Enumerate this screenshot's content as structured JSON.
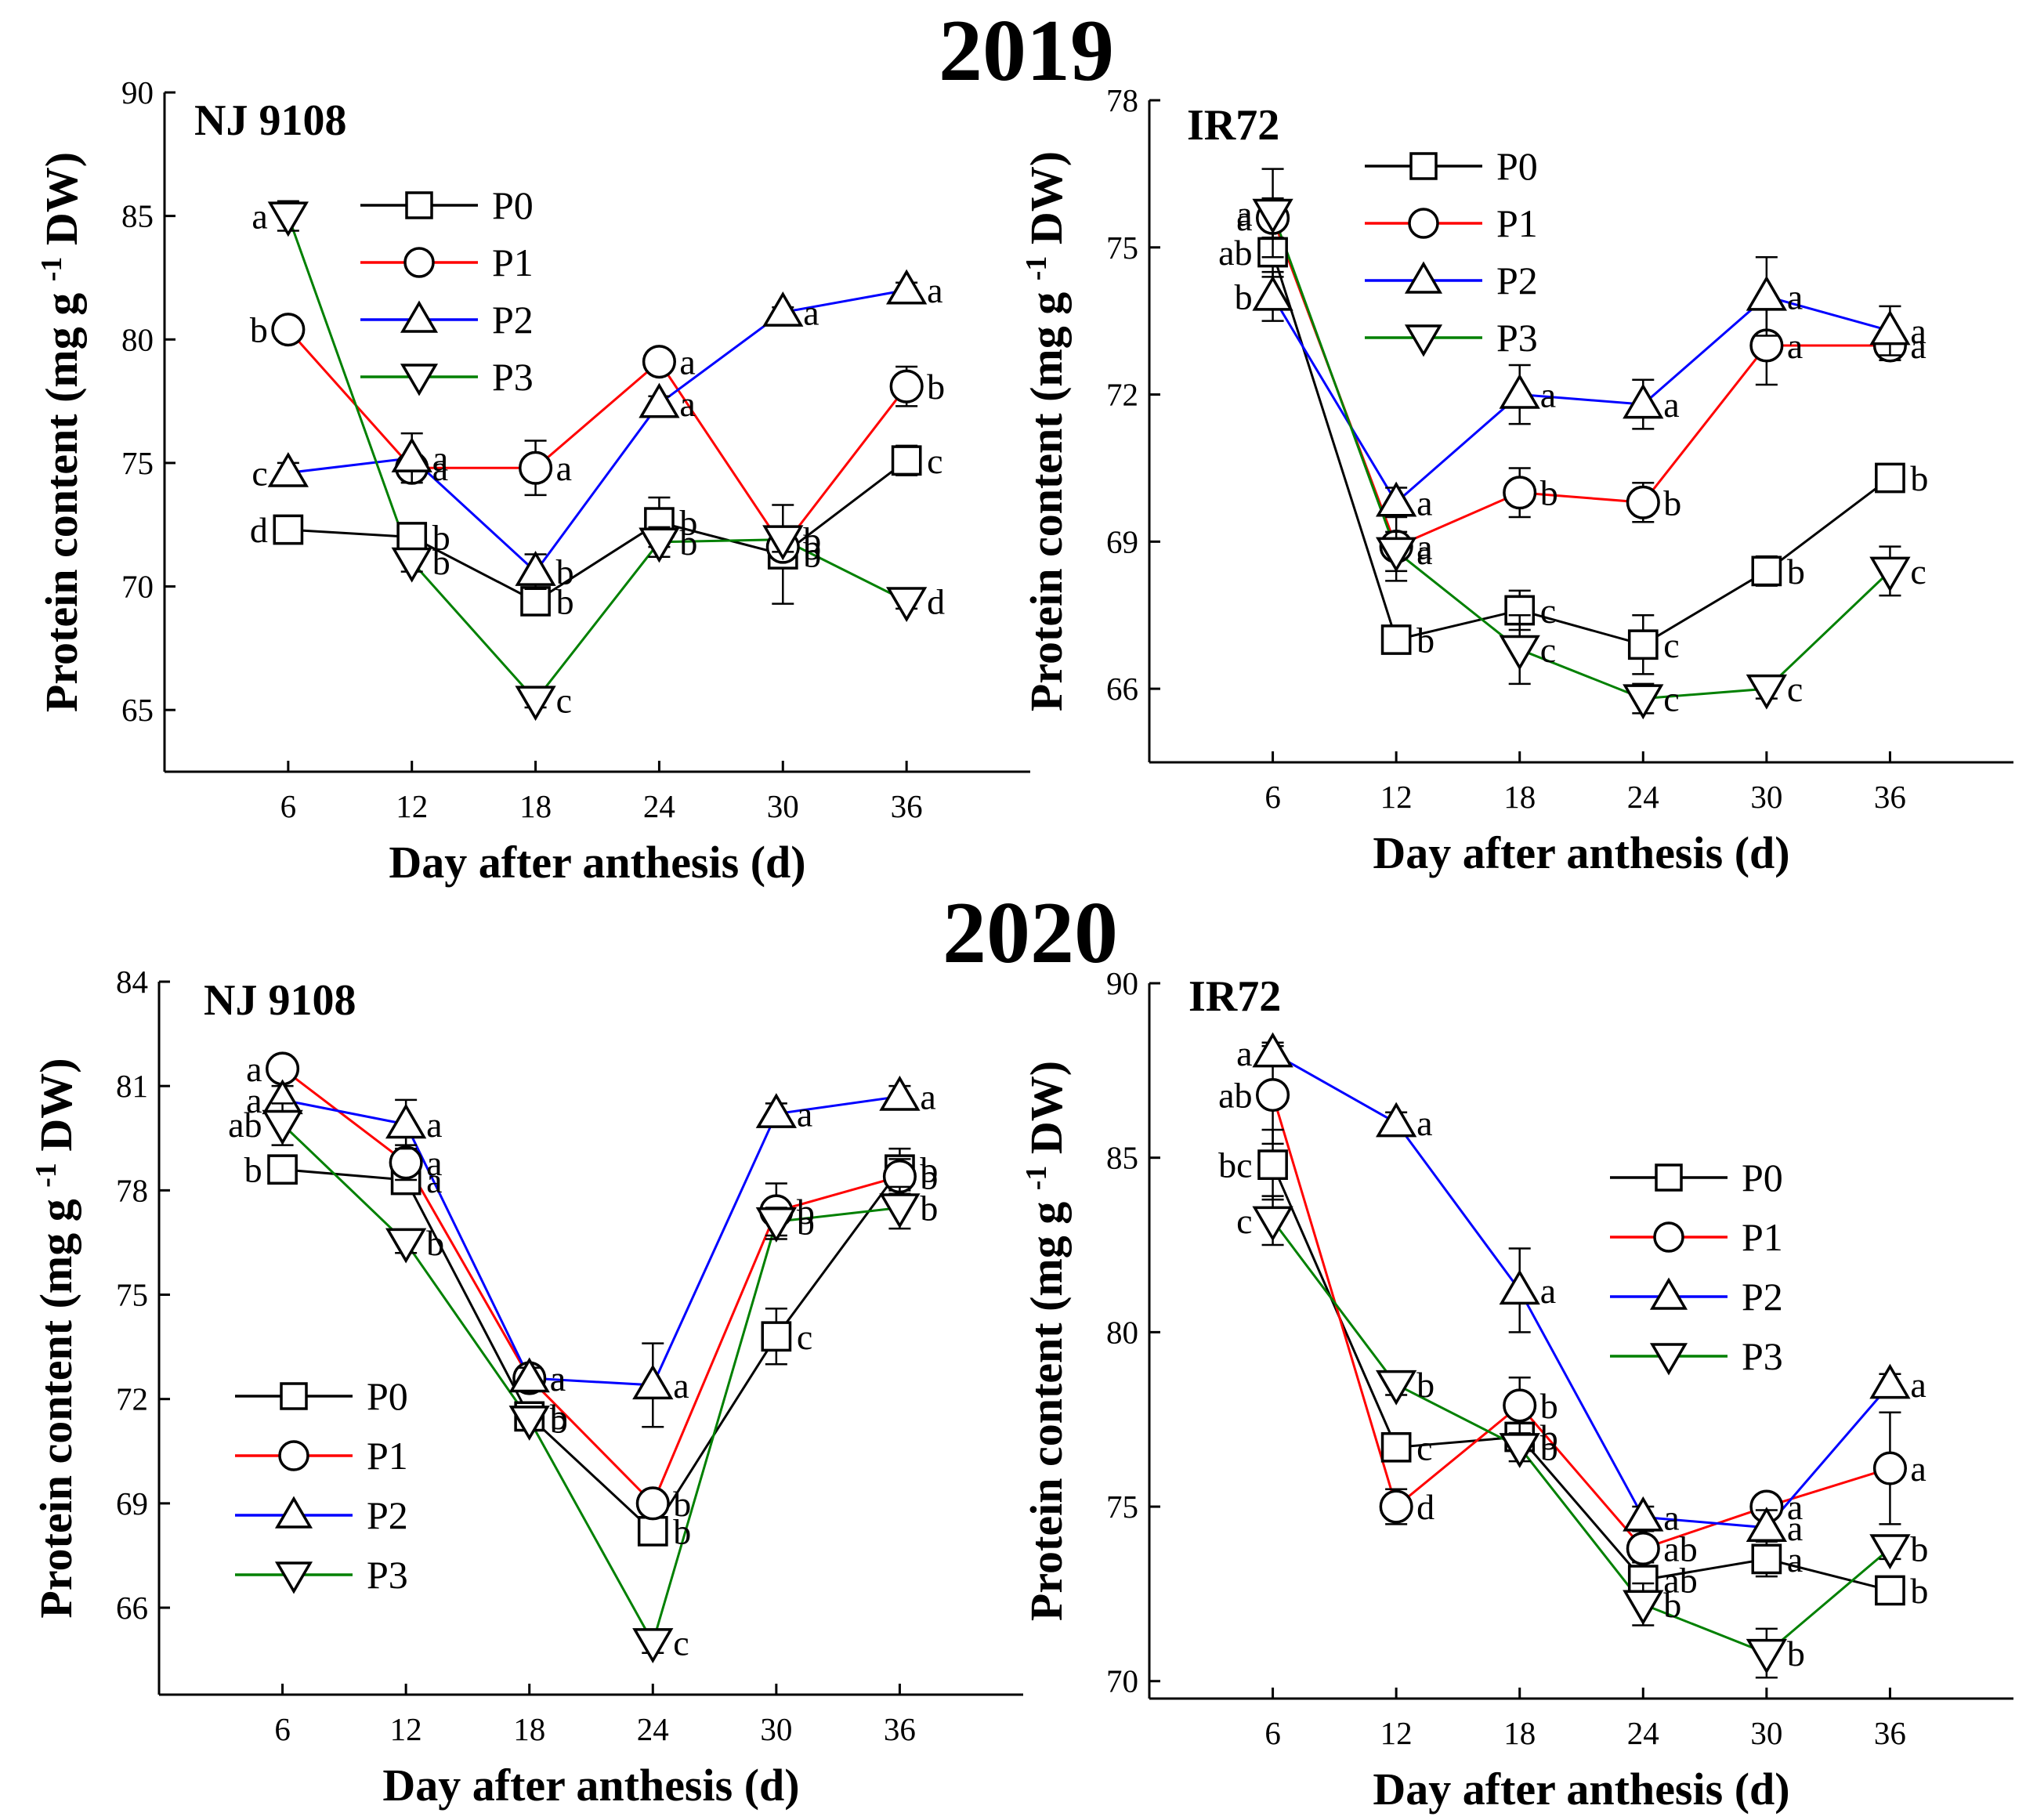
{
  "figure": {
    "years": [
      "2019",
      "2020"
    ],
    "colors": {
      "P0": "#000000",
      "P1": "#ff0000",
      "P2": "#0000ff",
      "P3": "#008000"
    },
    "markers": {
      "P0": "square-marker",
      "P1": "circle-marker",
      "P2": "triangle-up-marker",
      "P3": "triangle-down-marker"
    }
  },
  "chart_data": [
    {
      "type": "line",
      "year": "2019",
      "title": "NJ 9108",
      "xlabel": "Day after anthesis (d)",
      "ylabel": "Protein content (mg g -1 DW)",
      "ylabel_main": "Protein content (mg g",
      "ylabel_sup": "-1",
      "ylabel_tail": "DW)",
      "x": [
        6,
        12,
        18,
        24,
        30,
        36
      ],
      "xticks": [
        "6",
        "12",
        "18",
        "24",
        "30",
        "36"
      ],
      "ylim": [
        62.5,
        90
      ],
      "yticks": [
        65,
        70,
        75,
        80,
        85,
        90
      ],
      "legend_position": "top-center",
      "series": [
        {
          "name": "P0",
          "values": [
            72.3,
            72.0,
            69.4,
            72.6,
            71.3,
            75.1
          ],
          "errors": [
            0.3,
            0.4,
            0.4,
            1.0,
            2.0,
            0.6
          ],
          "letters": [
            "d",
            "b",
            "b",
            "b",
            "b",
            "c"
          ]
        },
        {
          "name": "P1",
          "values": [
            80.4,
            74.8,
            74.8,
            79.1,
            71.6,
            78.1
          ],
          "errors": [
            0.3,
            0.5,
            1.1,
            0.3,
            0.4,
            0.8
          ],
          "letters": [
            "b",
            "a",
            "a",
            "a",
            "b",
            "b"
          ]
        },
        {
          "name": "P2",
          "values": [
            74.6,
            75.2,
            70.6,
            77.4,
            81.1,
            82.0
          ],
          "errors": [
            0.4,
            1.0,
            0.7,
            0.3,
            0.2,
            0.3
          ],
          "letters": [
            "c",
            "a",
            "b",
            "a",
            "a",
            "a"
          ]
        },
        {
          "name": "P3",
          "values": [
            85.0,
            71.0,
            65.4,
            71.8,
            71.9,
            69.4
          ],
          "errors": [
            0.6,
            0.4,
            0.3,
            0.6,
            0.5,
            0.3
          ],
          "letters": [
            "a",
            "b",
            "c",
            "b",
            "b",
            "d"
          ]
        }
      ]
    },
    {
      "type": "line",
      "year": "2019",
      "title": "IR72",
      "xlabel": "Day after anthesis (d)",
      "ylabel": "Protein content (mg g -1 DW)",
      "ylabel_main": "Protein content (mg g",
      "ylabel_sup": "-1",
      "ylabel_tail": "DW)",
      "x": [
        6,
        12,
        18,
        24,
        30,
        36
      ],
      "xticks": [
        "6",
        "12",
        "18",
        "24",
        "30",
        "36"
      ],
      "ylim": [
        64.5,
        78
      ],
      "yticks": [
        66,
        69,
        72,
        75,
        78
      ],
      "legend_position": "top-center",
      "series": [
        {
          "name": "P0",
          "values": [
            74.9,
            67.0,
            67.6,
            66.9,
            68.4,
            70.3
          ],
          "errors": [
            0.5,
            0.2,
            0.4,
            0.6,
            0.3,
            0.2
          ],
          "letters": [
            "ab",
            "b",
            "c",
            "c",
            "b",
            "b"
          ]
        },
        {
          "name": "P1",
          "values": [
            75.6,
            68.9,
            70.0,
            69.8,
            73.0,
            73.0
          ],
          "errors": [
            0.4,
            0.7,
            0.5,
            0.4,
            0.8,
            0.3
          ],
          "letters": [
            "a",
            "a",
            "b",
            "b",
            "a",
            "a"
          ]
        },
        {
          "name": "P2",
          "values": [
            74.0,
            69.8,
            72.0,
            71.8,
            74.0,
            73.3
          ],
          "errors": [
            0.5,
            0.3,
            0.6,
            0.5,
            0.8,
            0.5
          ],
          "letters": [
            "b",
            "a",
            "a",
            "a",
            "a",
            "a"
          ]
        },
        {
          "name": "P3",
          "values": [
            75.7,
            68.8,
            66.8,
            65.8,
            66.0,
            68.4
          ],
          "errors": [
            0.9,
            0.4,
            0.7,
            0.3,
            0.2,
            0.5
          ],
          "letters": [
            "a",
            "a",
            "c",
            "c",
            "c",
            "c"
          ]
        }
      ]
    },
    {
      "type": "line",
      "year": "2020",
      "title": "NJ 9108",
      "xlabel": "Day after anthesis (d)",
      "ylabel": "Protein content (mg g -1 DW)",
      "ylabel_main": "Protein content (mg g",
      "ylabel_sup": "-1",
      "ylabel_tail": "DW)",
      "x": [
        6,
        12,
        18,
        24,
        30,
        36
      ],
      "xticks": [
        "6",
        "12",
        "18",
        "24",
        "30",
        "36"
      ],
      "ylim": [
        63.5,
        84
      ],
      "yticks": [
        66,
        69,
        72,
        75,
        78,
        81,
        84
      ],
      "legend_position": "bottom-left",
      "series": [
        {
          "name": "P0",
          "values": [
            78.6,
            78.3,
            71.5,
            68.2,
            73.8,
            78.6
          ],
          "errors": [
            0.3,
            0.4,
            0.4,
            0.3,
            0.8,
            0.6
          ],
          "letters": [
            "b",
            "a",
            "b",
            "b",
            "c",
            "b"
          ]
        },
        {
          "name": "P1",
          "values": [
            81.5,
            78.8,
            72.6,
            69.0,
            77.4,
            78.4
          ],
          "errors": [
            0.3,
            0.5,
            0.3,
            0.3,
            0.8,
            0.5
          ],
          "letters": [
            "a",
            "a",
            "a",
            "b",
            "b",
            "b"
          ]
        },
        {
          "name": "P2",
          "values": [
            80.6,
            79.9,
            72.6,
            72.4,
            80.2,
            80.7
          ],
          "errors": [
            0.4,
            0.7,
            0.3,
            1.2,
            0.3,
            0.3
          ],
          "letters": [
            "a",
            "a",
            "a",
            "a",
            "a",
            "a"
          ]
        },
        {
          "name": "P3",
          "values": [
            79.9,
            76.5,
            71.4,
            65.0,
            77.1,
            77.5
          ],
          "errors": [
            0.6,
            0.3,
            0.3,
            0.3,
            0.4,
            0.6
          ],
          "letters": [
            "ab",
            "b",
            "b",
            "c",
            "b",
            "b"
          ]
        }
      ]
    },
    {
      "type": "line",
      "year": "2020",
      "title": "IR72",
      "xlabel": "Day after anthesis (d)",
      "ylabel": "Protein content (mg g -1 DW)",
      "ylabel_main": "Protein content (mg g",
      "ylabel_sup": "-1",
      "ylabel_tail": "DW)",
      "x": [
        6,
        12,
        18,
        24,
        30,
        36
      ],
      "xticks": [
        "6",
        "12",
        "18",
        "24",
        "30",
        "36"
      ],
      "ylim": [
        69.5,
        90
      ],
      "yticks": [
        70,
        75,
        80,
        85,
        90
      ],
      "legend_position": "top-right",
      "series": [
        {
          "name": "P0",
          "values": [
            84.8,
            76.7,
            77.0,
            72.9,
            73.5,
            72.6
          ],
          "errors": [
            1.0,
            0.3,
            0.4,
            0.5,
            0.5,
            0.3
          ],
          "letters": [
            "bc",
            "c",
            "b",
            "ab",
            "a",
            "b"
          ]
        },
        {
          "name": "P1",
          "values": [
            86.8,
            75.0,
            77.9,
            73.8,
            75.0,
            76.1
          ],
          "errors": [
            1.4,
            0.5,
            0.8,
            0.5,
            0.3,
            1.6
          ],
          "letters": [
            "ab",
            "d",
            "b",
            "ab",
            "a",
            "a"
          ]
        },
        {
          "name": "P2",
          "values": [
            88.0,
            86.0,
            81.2,
            74.7,
            74.4,
            78.5
          ],
          "errors": [
            0.3,
            0.3,
            1.2,
            0.3,
            0.5,
            0.3
          ],
          "letters": [
            "a",
            "a",
            "a",
            "a",
            "a",
            "a"
          ]
        },
        {
          "name": "P3",
          "values": [
            83.2,
            78.5,
            76.7,
            72.2,
            70.8,
            73.8
          ],
          "errors": [
            0.7,
            0.3,
            0.4,
            0.6,
            0.7,
            0.3
          ],
          "letters": [
            "c",
            "b",
            "b",
            "b",
            "b",
            "b"
          ]
        }
      ]
    }
  ]
}
